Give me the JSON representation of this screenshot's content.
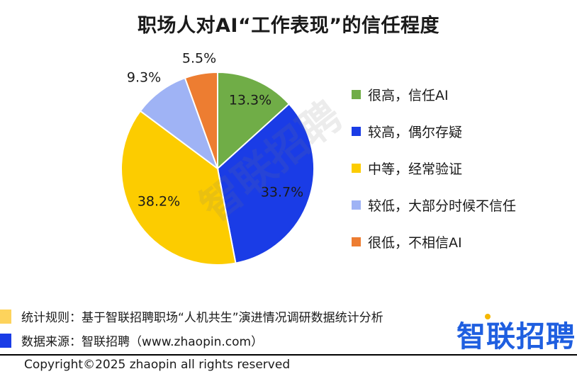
{
  "title": "职场人对AI“工作表现”的信任程度",
  "chart_data": {
    "type": "pie",
    "title": "职场人对AI“工作表现”的信任程度",
    "slices": [
      {
        "label": "很高，信任AI",
        "value": 13.3,
        "display": "13.3%",
        "color": "#70ad47"
      },
      {
        "label": "较高，偶尔存疑",
        "value": 33.7,
        "display": "33.7%",
        "color": "#1a3ce6"
      },
      {
        "label": "中等，经常验证",
        "value": 38.2,
        "display": "38.2%",
        "color": "#fccc00"
      },
      {
        "label": "较低，大部分时候不信任",
        "value": 9.3,
        "display": "9.3%",
        "color": "#9fb3f5"
      },
      {
        "label": "很低，不相信AI",
        "value": 5.5,
        "display": "5.5%",
        "color": "#ed7d31"
      }
    ],
    "legend_position": "right"
  },
  "watermark": "智联招聘",
  "notes": {
    "rule": "统计规则：基于智联招聘职场“人机共生”演进情况调研数据统计分析",
    "source": "数据来源：智联招聘（www.zhaopin.com）",
    "rule_marker_color": "#fdd35c",
    "source_marker_color": "#1a3ce6"
  },
  "brand": {
    "logo_text": "智联招聘",
    "color": "#1f5fe0",
    "dot_color": "#f5b700"
  },
  "copyright": "Copyright©2025 zhaopin all rights reserved"
}
